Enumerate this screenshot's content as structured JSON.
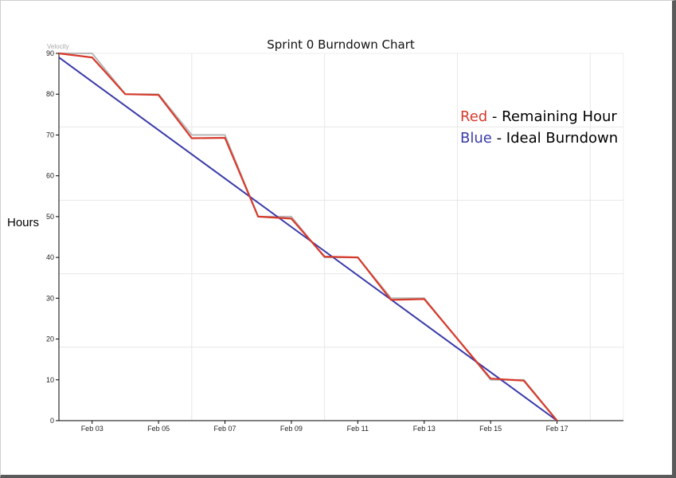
{
  "chart_data": {
    "type": "line",
    "title": "Sprint 0 Burndown Chart",
    "ylabel": "Hours",
    "xlabel": "",
    "ylim": [
      0,
      90
    ],
    "yticks": [
      0,
      10,
      20,
      30,
      40,
      50,
      60,
      70,
      80,
      90
    ],
    "xlim": [
      "2020-02-02",
      "2020-02-19"
    ],
    "xticks": [
      "Feb 03",
      "Feb 05",
      "Feb 07",
      "Feb 09",
      "Feb 11",
      "Feb 13",
      "Feb 15",
      "Feb 17"
    ],
    "xtick_dates": [
      "2020-02-03",
      "2020-02-05",
      "2020-02-07",
      "2020-02-09",
      "2020-02-11",
      "2020-02-13",
      "2020-02-15",
      "2020-02-17"
    ],
    "grid": true,
    "corner_label": "Velocity",
    "legend": {
      "items": [
        {
          "color_word": "Red",
          "text": " - Remaining Hour",
          "color": "#d63a2b"
        },
        {
          "color_word": "Blue",
          "text": " - Ideal Burndown",
          "color": "#3a3aaa"
        }
      ],
      "position": "top-right"
    },
    "series": [
      {
        "color": "#d63a2b",
        "points": [
          [
            "2020-02-02",
            90
          ],
          [
            "2020-02-03",
            89
          ],
          [
            "2020-02-04",
            80
          ],
          [
            "2020-02-05",
            79.8
          ],
          [
            "2020-02-06",
            69.2
          ],
          [
            "2020-02-07",
            69.3
          ],
          [
            "2020-02-08",
            50
          ],
          [
            "2020-02-09",
            49.5
          ],
          [
            "2020-02-10",
            40.2
          ],
          [
            "2020-02-11",
            40
          ],
          [
            "2020-02-12",
            29.6
          ],
          [
            "2020-02-13",
            29.8
          ],
          [
            "2020-02-15",
            10.3
          ],
          [
            "2020-02-16",
            9.8
          ],
          [
            "2020-02-17",
            0
          ]
        ]
      },
      {
        "color": "#b8b8b8",
        "points": [
          [
            "2020-02-02",
            90
          ],
          [
            "2020-02-03",
            90
          ],
          [
            "2020-02-04",
            80
          ],
          [
            "2020-02-05",
            80
          ],
          [
            "2020-02-06",
            70
          ],
          [
            "2020-02-07",
            70
          ],
          [
            "2020-02-08",
            50
          ],
          [
            "2020-02-09",
            50
          ],
          [
            "2020-02-10",
            40
          ],
          [
            "2020-02-11",
            40
          ],
          [
            "2020-02-12",
            30
          ],
          [
            "2020-02-13",
            30
          ],
          [
            "2020-02-15",
            10
          ],
          [
            "2020-02-16",
            10
          ],
          [
            "2020-02-17",
            0
          ]
        ]
      },
      {
        "color": "#3a3aaa",
        "points": [
          [
            "2020-02-02",
            89
          ],
          [
            "2020-02-17",
            0
          ]
        ]
      }
    ]
  }
}
